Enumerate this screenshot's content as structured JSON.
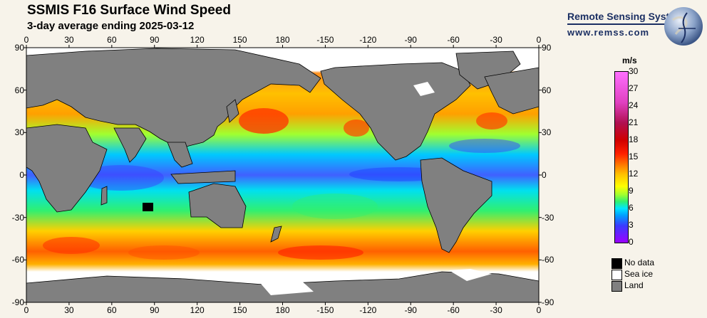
{
  "header": {
    "title": "SSMIS F16 Surface Wind Speed",
    "subtitle": "3-day average ending 2025-03-12"
  },
  "brand": {
    "name": "Remote Sensing Systems",
    "url": "www.remss.com"
  },
  "map": {
    "lon_ticks": [
      "0",
      "30",
      "60",
      "90",
      "120",
      "150",
      "180",
      "-150",
      "-120",
      "-90",
      "-60",
      "-30",
      "0"
    ],
    "lat_ticks": [
      "90",
      "60",
      "30",
      "0",
      "-30",
      "-60",
      "-90"
    ],
    "land_color": "#808080",
    "sea_ice_color": "#ffffff",
    "no_data_color": "#000000"
  },
  "colorbar": {
    "unit": "m/s",
    "ticks": [
      "30",
      "27",
      "24",
      "21",
      "18",
      "15",
      "12",
      "9",
      "6",
      "3",
      "0"
    ],
    "min": 0,
    "max": 30
  },
  "legend": {
    "items": [
      {
        "label": "No data",
        "color": "#000000"
      },
      {
        "label": "Sea ice",
        "color": "#ffffff"
      },
      {
        "label": "Land",
        "color": "#808080"
      }
    ]
  }
}
